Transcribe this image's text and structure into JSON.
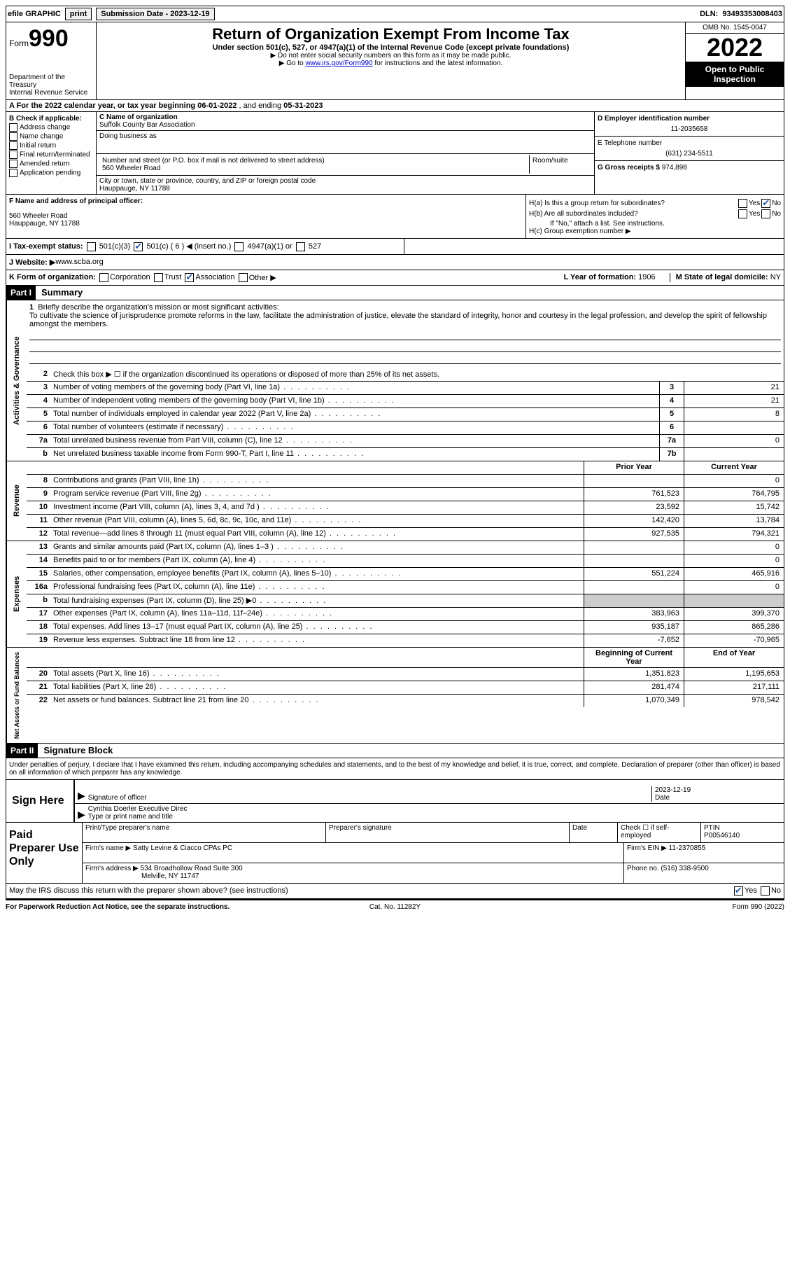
{
  "topbar": {
    "efile": "efile GRAPHIC",
    "print": "print",
    "sub_label": "Submission Date - ",
    "sub_date": "2023-12-19",
    "dln_label": "DLN: ",
    "dln": "93493353008403"
  },
  "header": {
    "form_word": "Form",
    "form_num": "990",
    "dept": "Department of the Treasury",
    "irs": "Internal Revenue Service",
    "title": "Return of Organization Exempt From Income Tax",
    "sub": "Under section 501(c), 527, or 4947(a)(1) of the Internal Revenue Code (except private foundations)",
    "note1": "▶ Do not enter social security numbers on this form as it may be made public.",
    "note2_pre": "▶ Go to ",
    "note2_link": "www.irs.gov/Form990",
    "note2_post": " for instructions and the latest information.",
    "omb": "OMB No. 1545-0047",
    "year": "2022",
    "inspection": "Open to Public Inspection"
  },
  "period": {
    "text_pre": "A For the 2022 calendar year, or tax year beginning ",
    "begin": "06-01-2022",
    "mid": " , and ending ",
    "end": "05-31-2023"
  },
  "boxB": {
    "label": "B Check if applicable:",
    "items": [
      "Address change",
      "Name change",
      "Initial return",
      "Final return/terminated",
      "Amended return",
      "Application pending"
    ]
  },
  "boxC": {
    "name_label": "C Name of organization",
    "name": "Suffolk County Bar Association",
    "dba_label": "Doing business as",
    "dba": "",
    "addr_label": "Number and street (or P.O. box if mail is not delivered to street address)",
    "room_label": "Room/suite",
    "addr": "560 Wheeler Road",
    "city_label": "City or town, state or province, country, and ZIP or foreign postal code",
    "city": "Hauppauge, NY  11788"
  },
  "boxD": {
    "ein_label": "D Employer identification number",
    "ein": "11-2035658",
    "tel_label": "E Telephone number",
    "tel": "(631) 234-5511",
    "gross_label": "G Gross receipts $ ",
    "gross": "974,898"
  },
  "boxF": {
    "label": "F  Name and address of principal officer:",
    "l1": "560 Wheeler Road",
    "l2": "Hauppauge, NY  11788"
  },
  "boxH": {
    "a": "H(a)  Is this a group return for subordinates?",
    "b": "H(b)  Are all subordinates included?",
    "note": "If \"No,\" attach a list. See instructions.",
    "c": "H(c)  Group exemption number ▶",
    "yes": "Yes",
    "no": "No"
  },
  "boxI": {
    "label": "I    Tax-exempt status:",
    "o1": "501(c)(3)",
    "o2": "501(c) ( 6 ) ◀ (insert no.)",
    "o3": "4947(a)(1) or",
    "o4": "527"
  },
  "boxJ": {
    "label": "J   Website: ▶ ",
    "val": "www.scba.org"
  },
  "boxK": {
    "label": "K Form of organization:",
    "o1": "Corporation",
    "o2": "Trust",
    "o3": "Association",
    "o4": "Other ▶",
    "l_label": "L Year of formation: ",
    "l_val": "1906",
    "m_label": "M State of legal domicile: ",
    "m_val": "NY"
  },
  "part1": {
    "hdr": "Part I",
    "title": "Summary",
    "tab_ag": "Activities & Governance",
    "tab_rev": "Revenue",
    "tab_exp": "Expenses",
    "tab_net": "Net Assets or Fund Balances",
    "l1_label": "Briefly describe the organization's mission or most significant activities:",
    "l1_text": "To cultivate the science of jurisprudence promote reforms in the law, facilitate the administration of justice, elevate the standard of integrity, honor and courtesy in the legal profession, and develop the spirit of fellowship amongst the members.",
    "l2": "Check this box ▶ ☐ if the organization discontinued its operations or disposed of more than 25% of its net assets.",
    "rows_ag": [
      {
        "n": "3",
        "t": "Number of voting members of the governing body (Part VI, line 1a)",
        "b": "3",
        "v": "21"
      },
      {
        "n": "4",
        "t": "Number of independent voting members of the governing body (Part VI, line 1b)",
        "b": "4",
        "v": "21"
      },
      {
        "n": "5",
        "t": "Total number of individuals employed in calendar year 2022 (Part V, line 2a)",
        "b": "5",
        "v": "8"
      },
      {
        "n": "6",
        "t": "Total number of volunteers (estimate if necessary)",
        "b": "6",
        "v": ""
      },
      {
        "n": "7a",
        "t": "Total unrelated business revenue from Part VIII, column (C), line 12",
        "b": "7a",
        "v": "0"
      },
      {
        "n": "b",
        "t": "Net unrelated business taxable income from Form 990-T, Part I, line 11",
        "b": "7b",
        "v": ""
      }
    ],
    "hdr_prior": "Prior Year",
    "hdr_curr": "Current Year",
    "rows_rev": [
      {
        "n": "8",
        "t": "Contributions and grants (Part VIII, line 1h)",
        "p": "",
        "c": "0"
      },
      {
        "n": "9",
        "t": "Program service revenue (Part VIII, line 2g)",
        "p": "761,523",
        "c": "764,795"
      },
      {
        "n": "10",
        "t": "Investment income (Part VIII, column (A), lines 3, 4, and 7d )",
        "p": "23,592",
        "c": "15,742"
      },
      {
        "n": "11",
        "t": "Other revenue (Part VIII, column (A), lines 5, 6d, 8c, 9c, 10c, and 11e)",
        "p": "142,420",
        "c": "13,784"
      },
      {
        "n": "12",
        "t": "Total revenue—add lines 8 through 11 (must equal Part VIII, column (A), line 12)",
        "p": "927,535",
        "c": "794,321"
      }
    ],
    "rows_exp": [
      {
        "n": "13",
        "t": "Grants and similar amounts paid (Part IX, column (A), lines 1–3 )",
        "p": "",
        "c": "0"
      },
      {
        "n": "14",
        "t": "Benefits paid to or for members (Part IX, column (A), line 4)",
        "p": "",
        "c": "0"
      },
      {
        "n": "15",
        "t": "Salaries, other compensation, employee benefits (Part IX, column (A), lines 5–10)",
        "p": "551,224",
        "c": "465,916"
      },
      {
        "n": "16a",
        "t": "Professional fundraising fees (Part IX, column (A), line 11e)",
        "p": "",
        "c": "0"
      },
      {
        "n": "b",
        "t": "Total fundraising expenses (Part IX, column (D), line 25) ▶0",
        "p": "grey",
        "c": "grey"
      },
      {
        "n": "17",
        "t": "Other expenses (Part IX, column (A), lines 11a–11d, 11f–24e)",
        "p": "383,963",
        "c": "399,370"
      },
      {
        "n": "18",
        "t": "Total expenses. Add lines 13–17 (must equal Part IX, column (A), line 25)",
        "p": "935,187",
        "c": "865,286"
      },
      {
        "n": "19",
        "t": "Revenue less expenses. Subtract line 18 from line 12",
        "p": "-7,652",
        "c": "-70,965"
      }
    ],
    "hdr_beg": "Beginning of Current Year",
    "hdr_end": "End of Year",
    "rows_net": [
      {
        "n": "20",
        "t": "Total assets (Part X, line 16)",
        "p": "1,351,823",
        "c": "1,195,653"
      },
      {
        "n": "21",
        "t": "Total liabilities (Part X, line 26)",
        "p": "281,474",
        "c": "217,111"
      },
      {
        "n": "22",
        "t": "Net assets or fund balances. Subtract line 21 from line 20",
        "p": "1,070,349",
        "c": "978,542"
      }
    ]
  },
  "part2": {
    "hdr": "Part II",
    "title": "Signature Block",
    "decl": "Under penalties of perjury, I declare that I have examined this return, including accompanying schedules and statements, and to the best of my knowledge and belief, it is true, correct, and complete. Declaration of preparer (other than officer) is based on all information of which preparer has any knowledge.",
    "sign_here": "Sign Here",
    "sig_officer": "Signature of officer",
    "date_label": "Date",
    "sig_date": "2023-12-19",
    "name_title": "Cynthia Doerler  Executive Direc",
    "name_label": "Type or print name and title",
    "paid": "Paid Preparer Use Only",
    "p_name_label": "Print/Type preparer's name",
    "p_sig_label": "Preparer's signature",
    "p_date_label": "Date",
    "p_check": "Check ☐ if self-employed",
    "ptin_label": "PTIN",
    "ptin": "P00546140",
    "firm_name_label": "Firm's name     ▶ ",
    "firm_name": "Satty Levine & Ciacco CPAs PC",
    "firm_ein_label": "Firm's EIN ▶ ",
    "firm_ein": "11-2370855",
    "firm_addr_label": "Firm's address ▶ ",
    "firm_addr1": "534 Broadhollow Road Suite 300",
    "firm_addr2": "Melville, NY  11747",
    "phone_label": "Phone no. ",
    "phone": "(516) 338-9500",
    "discuss": "May the IRS discuss this return with the preparer shown above? (see instructions)"
  },
  "footer": {
    "pra": "For Paperwork Reduction Act Notice, see the separate instructions.",
    "cat": "Cat. No. 11282Y",
    "form": "Form 990 (2022)"
  }
}
